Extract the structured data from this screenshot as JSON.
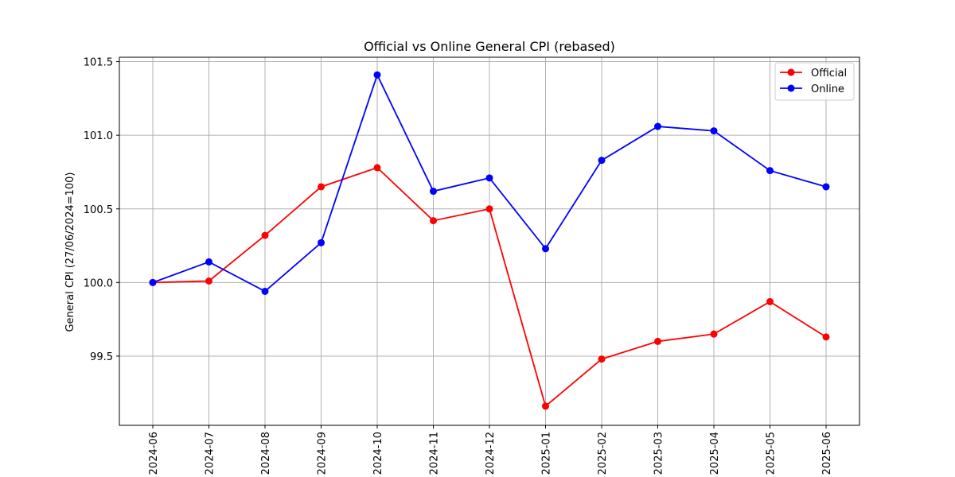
{
  "chart_data": {
    "type": "line",
    "title": "Official vs Online General CPI (rebased)",
    "xlabel": "",
    "ylabel": "General CPI (27/06/2024=100)",
    "x": [
      "2024-06",
      "2024-07",
      "2024-08",
      "2024-09",
      "2024-10",
      "2024-11",
      "2024-12",
      "2025-01",
      "2025-02",
      "2025-03",
      "2025-04",
      "2025-05",
      "2025-06"
    ],
    "yticks": [
      "99.5",
      "100.0",
      "100.5",
      "101.0",
      "101.5"
    ],
    "ylim": [
      99.03,
      101.53
    ],
    "grid": true,
    "legend_position": "top-right",
    "series": [
      {
        "name": "Official",
        "color": "#ff0000",
        "values": [
          100.0,
          100.01,
          100.32,
          100.65,
          100.78,
          100.42,
          100.5,
          99.16,
          99.48,
          99.6,
          99.65,
          99.87,
          99.63
        ]
      },
      {
        "name": "Online",
        "color": "#0000ff",
        "values": [
          100.0,
          100.14,
          99.94,
          100.27,
          101.41,
          100.62,
          100.71,
          100.23,
          100.83,
          101.06,
          101.03,
          100.76,
          100.65
        ]
      }
    ]
  }
}
